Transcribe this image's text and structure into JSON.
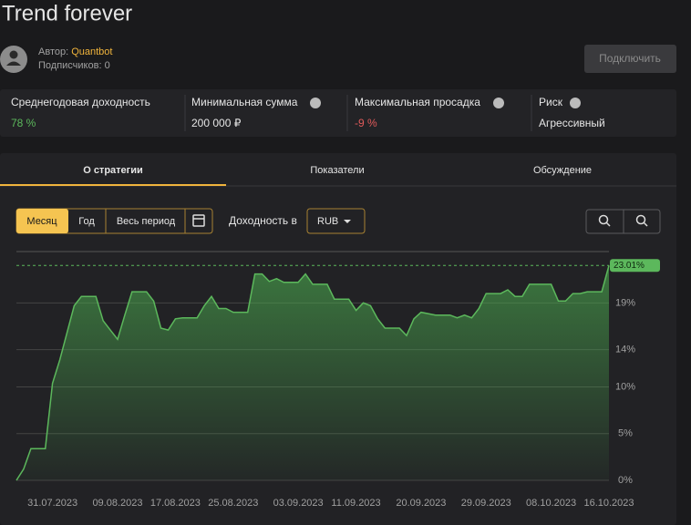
{
  "header": {
    "title": "Trend forever",
    "author_label": "Автор:",
    "author": "Quantbot",
    "subscribers": "Подписчиков: 0",
    "button": "Подключить"
  },
  "stats": [
    {
      "label": "Среднегодовая доходность",
      "value": "78 %"
    },
    {
      "label": "Минимальная сумма",
      "value": "200 000 ₽"
    },
    {
      "label": "Максимальная просадка",
      "value": "-9 %"
    },
    {
      "label": "Риск",
      "value": "Агрессивный"
    }
  ],
  "tabs": [
    "О стратегии",
    "Показатели",
    "Обсуждение"
  ],
  "controls": {
    "periods": [
      "Месяц",
      "Год",
      "Весь период"
    ],
    "currency_label": "Доходность в",
    "currency": "RUB"
  },
  "chart_data": {
    "type": "area",
    "color": "#5cb85c",
    "grid": true,
    "x": [
      "26.07.2023",
      "27.07.2023",
      "28.07.2023",
      "30.07.2023",
      "31.07.2023",
      "01.08.2023",
      "02.08.2023",
      "03.08.2023",
      "04.08.2023",
      "06.08.2023",
      "07.08.2023",
      "08.08.2023",
      "09.08.2023",
      "10.08.2023",
      "11.08.2023",
      "13.08.2023",
      "14.08.2023",
      "15.08.2023",
      "16.08.2023",
      "17.08.2023",
      "18.08.2023",
      "20.08.2023",
      "21.08.2023",
      "22.08.2023",
      "23.08.2023",
      "24.08.2023",
      "25.08.2023",
      "27.08.2023",
      "28.08.2023",
      "29.08.2023",
      "30.08.2023",
      "31.08.2023",
      "01.09.2023",
      "03.09.2023",
      "04.09.2023",
      "05.09.2023",
      "07.09.2023",
      "08.09.2023",
      "10.09.2023",
      "11.09.2023",
      "12.09.2023",
      "13.09.2023",
      "14.09.2023",
      "15.09.2023",
      "17.09.2023",
      "18.09.2023",
      "19.09.2023",
      "20.09.2023",
      "22.09.2023",
      "24.09.2023",
      "25.09.2023",
      "26.09.2023",
      "27.09.2023",
      "28.09.2023",
      "29.09.2023",
      "01.10.2023",
      "02.10.2023",
      "03.10.2023",
      "04.10.2023",
      "05.10.2023",
      "08.10.2023",
      "09.10.2023",
      "10.10.2023",
      "11.10.2023",
      "12.10.2023",
      "13.10.2023",
      "15.10.2023",
      "16.10.2023"
    ],
    "values": [
      0,
      1.2,
      3.4,
      3.4,
      10.4,
      12.9,
      15.8,
      18.7,
      19.7,
      19.7,
      17.1,
      16.1,
      15.1,
      17.7,
      20.2,
      20.2,
      19.2,
      16.3,
      16.1,
      17.3,
      17.4,
      17.4,
      18.7,
      19.7,
      18.4,
      18.4,
      18.0,
      18.0,
      22.1,
      22.1,
      21.3,
      21.6,
      21.2,
      21.2,
      22.1,
      21.0,
      21.0,
      19.4,
      19.4,
      18.2,
      19.0,
      18.7,
      17.3,
      16.3,
      16.3,
      15.5,
      17.3,
      18.0,
      17.7,
      17.7,
      17.4,
      17.7,
      17.4,
      18.4,
      20.0,
      20.0,
      20.4,
      19.7,
      19.7,
      21.0,
      21.0,
      19.2,
      19.2,
      20.0,
      20.0,
      20.2,
      20.2,
      23.01
    ],
    "xlim": [
      "26.07.2023",
      "16.10.2023"
    ],
    "xticks": [
      "31.07.2023",
      "09.08.2023",
      "17.08.2023",
      "25.08.2023",
      "03.09.2023",
      "11.09.2023",
      "20.09.2023",
      "29.09.2023",
      "08.10.2023",
      "16.10.2023"
    ],
    "ylim": [
      0,
      24.5
    ],
    "yticks": [
      {
        "value": 0,
        "label": "0%"
      },
      {
        "value": 5,
        "label": "5%"
      },
      {
        "value": 10,
        "label": "10%"
      },
      {
        "value": 14,
        "label": "14%"
      },
      {
        "value": 19,
        "label": "19%"
      }
    ],
    "reference_line": {
      "value": 23.01,
      "label": "23.01%"
    }
  }
}
